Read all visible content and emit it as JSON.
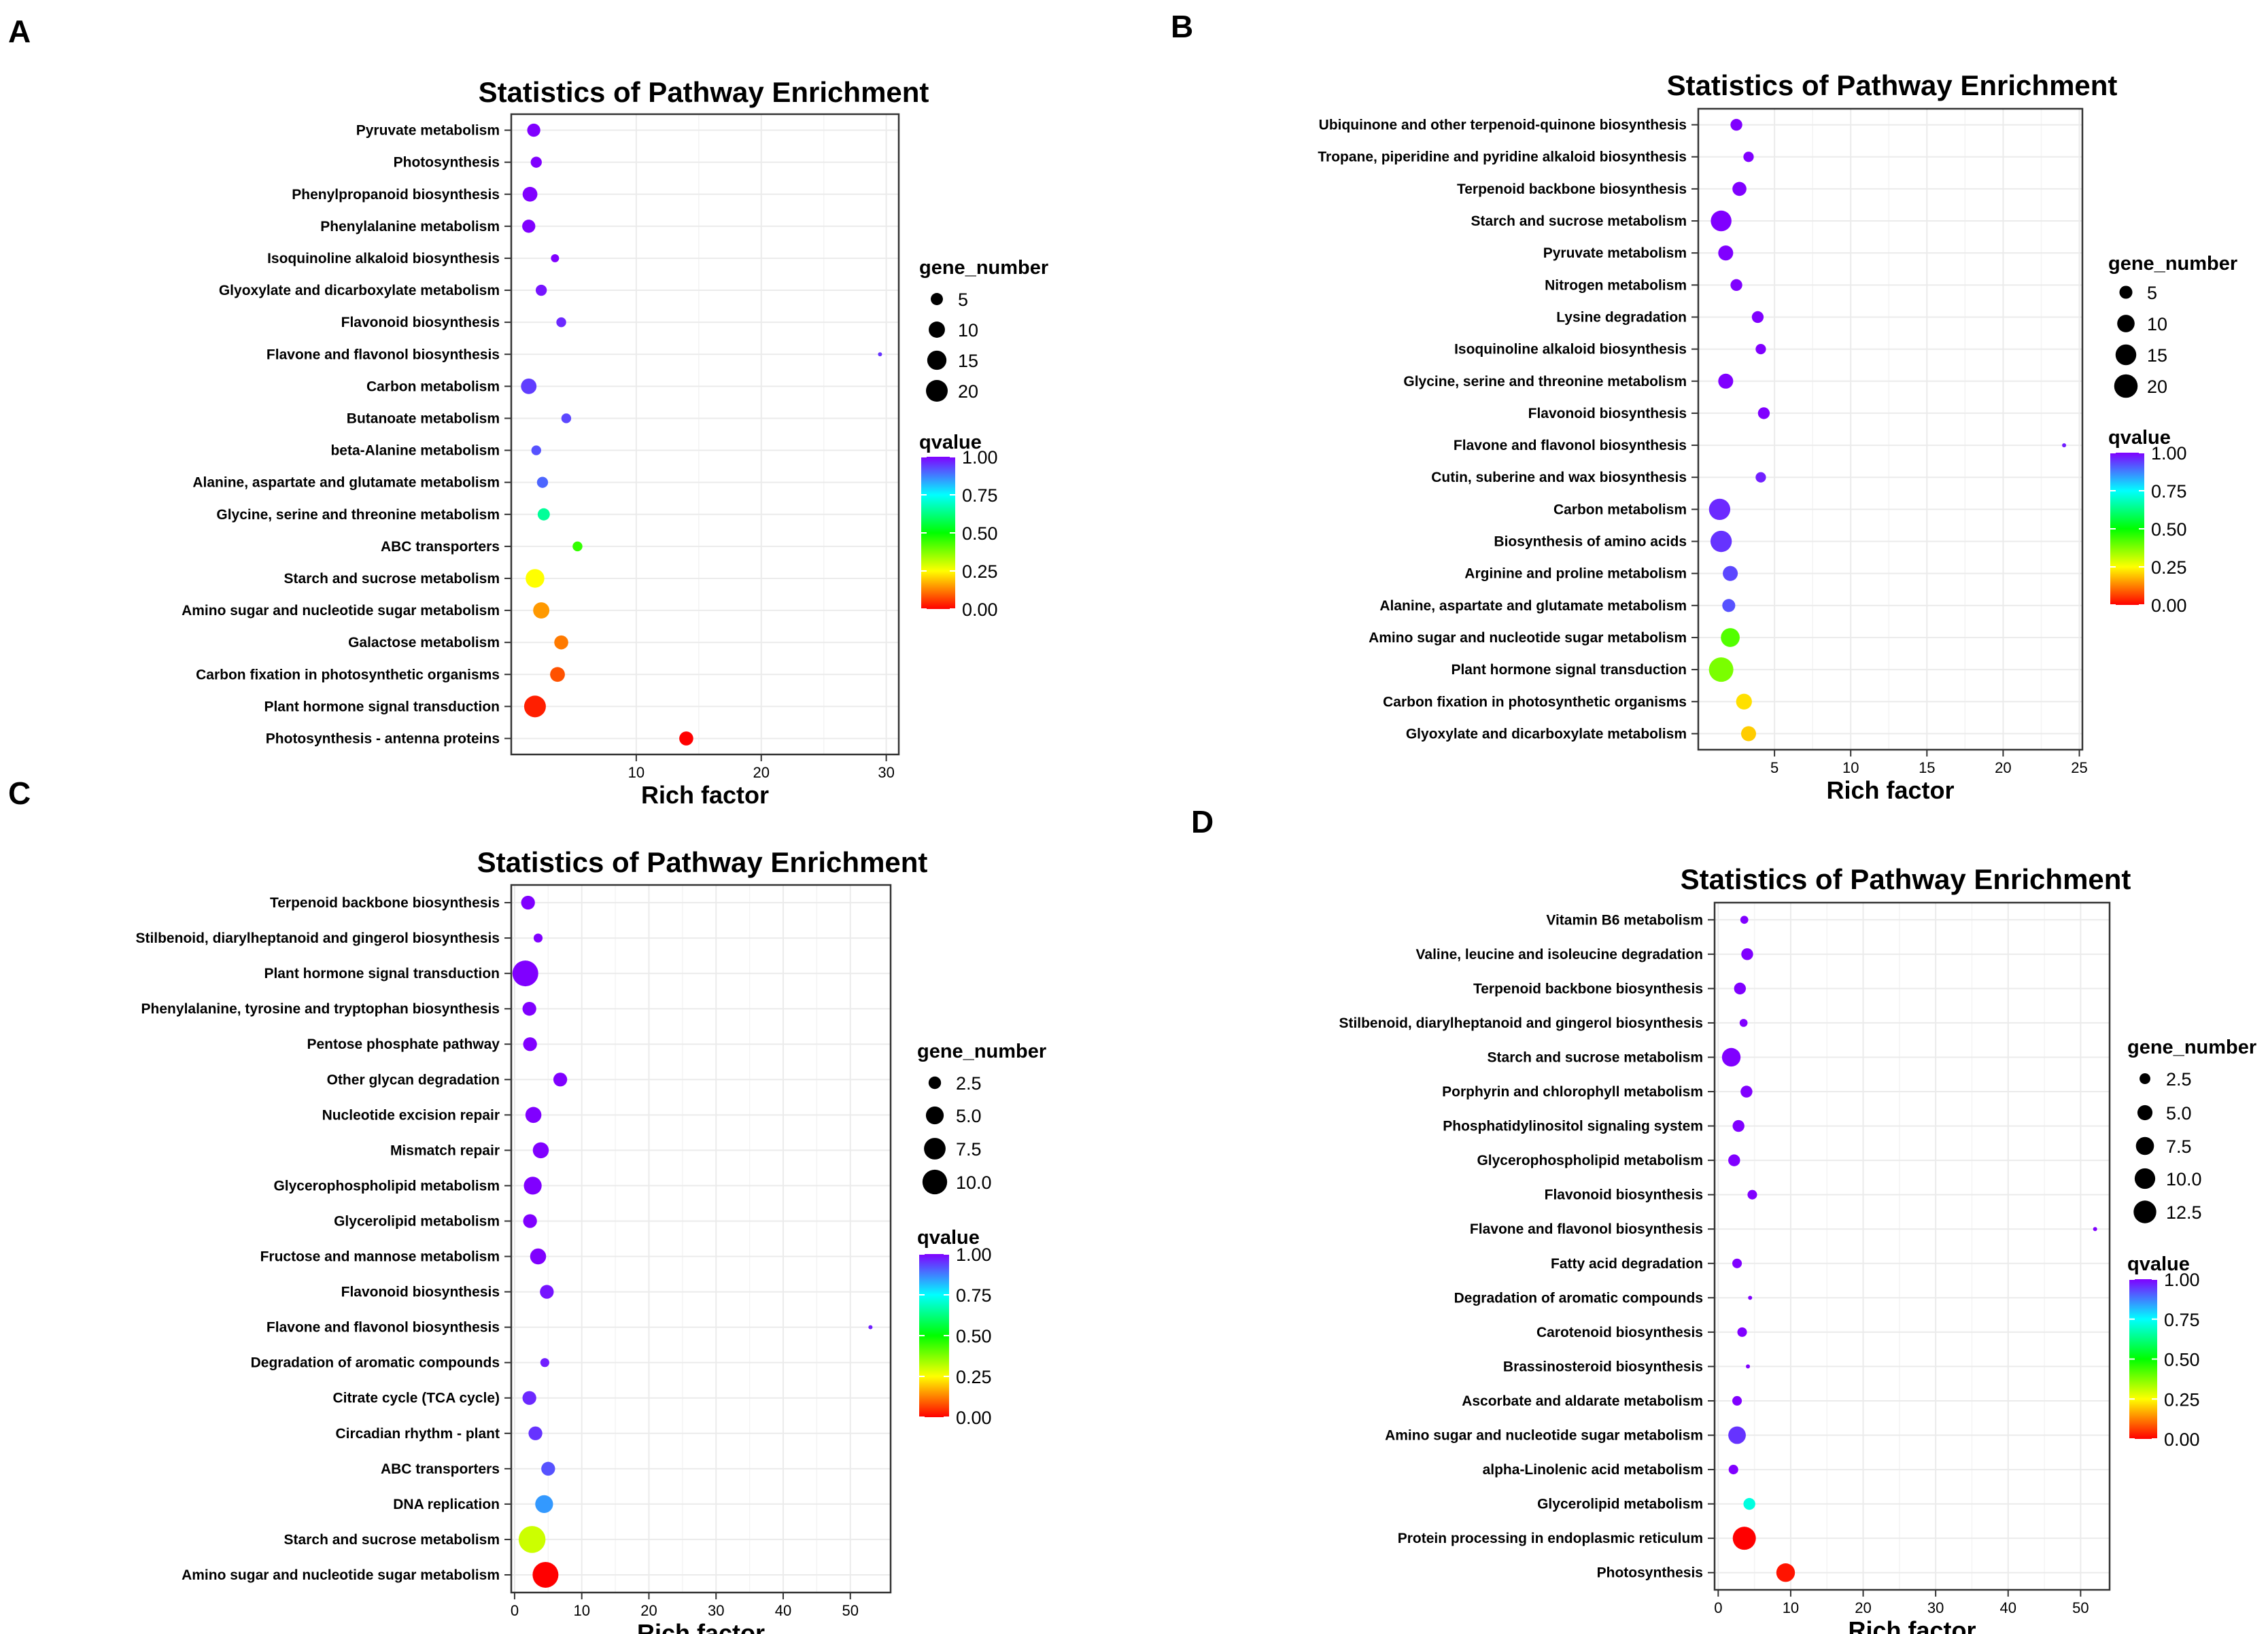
{
  "panel_labels": [
    "A",
    "B",
    "C",
    "D"
  ],
  "colors": {
    "q0": "#ff0000",
    "q25": "#ffff00",
    "q50": "#00ff00",
    "q75": "#00ffff",
    "q100": "#8000ff",
    "grid": "#ebebeb",
    "panel": "#ffffff",
    "border": "#333333"
  },
  "chart_data": [
    {
      "panel": "A",
      "type": "scatter",
      "title": "Statistics of Pathway Enrichment",
      "xlabel": "Rich factor",
      "ylabel": "",
      "xlim": [
        0,
        31
      ],
      "xticks": [
        10,
        20,
        30
      ],
      "size_legend_title": "gene_number",
      "size_legend": [
        5,
        10,
        15,
        20
      ],
      "color_legend_title": "qvalue",
      "color_legend": [
        "1.00",
        "0.75",
        "0.50",
        "0.25",
        "0.00"
      ],
      "points": [
        {
          "pathway": "Pyruvate metabolism",
          "rich_factor": 1.8,
          "gene_number": 6,
          "qvalue": 1.0
        },
        {
          "pathway": "Photosynthesis",
          "rich_factor": 2.0,
          "gene_number": 4,
          "qvalue": 1.0
        },
        {
          "pathway": "Phenylpropanoid biosynthesis",
          "rich_factor": 1.5,
          "gene_number": 8,
          "qvalue": 1.0
        },
        {
          "pathway": "Phenylalanine metabolism",
          "rich_factor": 1.4,
          "gene_number": 6,
          "qvalue": 1.0
        },
        {
          "pathway": "Isoquinoline alkaloid biosynthesis",
          "rich_factor": 3.5,
          "gene_number": 2,
          "qvalue": 1.0
        },
        {
          "pathway": "Glyoxylate and dicarboxylate metabolism",
          "rich_factor": 2.4,
          "gene_number": 4,
          "qvalue": 0.98
        },
        {
          "pathway": "Flavonoid biosynthesis",
          "rich_factor": 4.0,
          "gene_number": 3,
          "qvalue": 0.96
        },
        {
          "pathway": "Flavone and flavonol biosynthesis",
          "rich_factor": 29.5,
          "gene_number": 1,
          "qvalue": 0.95
        },
        {
          "pathway": "Carbon metabolism",
          "rich_factor": 1.4,
          "gene_number": 9,
          "qvalue": 0.94
        },
        {
          "pathway": "Butanoate metabolism",
          "rich_factor": 4.4,
          "gene_number": 3,
          "qvalue": 0.93
        },
        {
          "pathway": "beta-Alanine metabolism",
          "rich_factor": 2.0,
          "gene_number": 3,
          "qvalue": 0.92
        },
        {
          "pathway": "Alanine, aspartate and glutamate metabolism",
          "rich_factor": 2.5,
          "gene_number": 4,
          "qvalue": 0.9
        },
        {
          "pathway": "Glycine, serine and threonine metabolism",
          "rich_factor": 2.6,
          "gene_number": 5,
          "qvalue": 0.65
        },
        {
          "pathway": "ABC transporters",
          "rich_factor": 5.3,
          "gene_number": 3,
          "qvalue": 0.45
        },
        {
          "pathway": "Starch and sucrose metabolism",
          "rich_factor": 1.9,
          "gene_number": 14,
          "qvalue": 0.25
        },
        {
          "pathway": "Amino sugar and nucleotide sugar metabolism",
          "rich_factor": 2.4,
          "gene_number": 10,
          "qvalue": 0.15
        },
        {
          "pathway": "Galactose metabolism",
          "rich_factor": 4.0,
          "gene_number": 7,
          "qvalue": 0.12
        },
        {
          "pathway": "Carbon fixation in photosynthetic organisms",
          "rich_factor": 3.7,
          "gene_number": 8,
          "qvalue": 0.08
        },
        {
          "pathway": "Plant hormone signal transduction",
          "rich_factor": 1.9,
          "gene_number": 20,
          "qvalue": 0.03
        },
        {
          "pathway": "Photosynthesis - antenna proteins",
          "rich_factor": 14.0,
          "gene_number": 7,
          "qvalue": 0.0
        }
      ]
    },
    {
      "panel": "B",
      "type": "scatter",
      "title": "Statistics of Pathway Enrichment",
      "xlabel": "Rich factor",
      "ylabel": "",
      "xlim": [
        0,
        25.2
      ],
      "xticks": [
        5,
        10,
        15,
        20,
        25
      ],
      "size_legend_title": "gene_number",
      "size_legend": [
        5,
        10,
        15,
        20
      ],
      "color_legend_title": "qvalue",
      "color_legend": [
        "1.00",
        "0.75",
        "0.50",
        "0.25",
        "0.00"
      ],
      "points": [
        {
          "pathway": "Ubiquinone and other terpenoid-quinone biosynthesis",
          "rich_factor": 2.5,
          "gene_number": 4,
          "qvalue": 1.0
        },
        {
          "pathway": "Tropane, piperidine and pyridine alkaloid biosynthesis",
          "rich_factor": 3.3,
          "gene_number": 3,
          "qvalue": 1.0
        },
        {
          "pathway": "Terpenoid backbone biosynthesis",
          "rich_factor": 2.7,
          "gene_number": 6,
          "qvalue": 1.0
        },
        {
          "pathway": "Starch and sucrose metabolism",
          "rich_factor": 1.5,
          "gene_number": 15,
          "qvalue": 1.0
        },
        {
          "pathway": "Pyruvate metabolism",
          "rich_factor": 1.8,
          "gene_number": 7,
          "qvalue": 1.0
        },
        {
          "pathway": "Nitrogen metabolism",
          "rich_factor": 2.5,
          "gene_number": 4,
          "qvalue": 1.0
        },
        {
          "pathway": "Lysine degradation",
          "rich_factor": 3.9,
          "gene_number": 4,
          "qvalue": 1.0
        },
        {
          "pathway": "Isoquinoline alkaloid biosynthesis",
          "rich_factor": 4.1,
          "gene_number": 3,
          "qvalue": 1.0
        },
        {
          "pathway": "Glycine, serine and threonine metabolism",
          "rich_factor": 1.8,
          "gene_number": 7,
          "qvalue": 1.0
        },
        {
          "pathway": "Flavonoid biosynthesis",
          "rich_factor": 4.3,
          "gene_number": 4,
          "qvalue": 1.0
        },
        {
          "pathway": "Flavone and flavonol biosynthesis",
          "rich_factor": 24.0,
          "gene_number": 1,
          "qvalue": 0.97
        },
        {
          "pathway": "Cutin, suberine and wax biosynthesis",
          "rich_factor": 4.1,
          "gene_number": 3,
          "qvalue": 0.97
        },
        {
          "pathway": "Carbon metabolism",
          "rich_factor": 1.4,
          "gene_number": 16,
          "qvalue": 0.96
        },
        {
          "pathway": "Biosynthesis of amino acids",
          "rich_factor": 1.5,
          "gene_number": 16,
          "qvalue": 0.95
        },
        {
          "pathway": "Arginine and proline metabolism",
          "rich_factor": 2.1,
          "gene_number": 7,
          "qvalue": 0.93
        },
        {
          "pathway": "Alanine, aspartate and glutamate metabolism",
          "rich_factor": 2.0,
          "gene_number": 5,
          "qvalue": 0.92
        },
        {
          "pathway": "Amino sugar and nucleotide sugar metabolism",
          "rich_factor": 2.1,
          "gene_number": 12,
          "qvalue": 0.42
        },
        {
          "pathway": "Plant hormone signal transduction",
          "rich_factor": 1.5,
          "gene_number": 22,
          "qvalue": 0.38
        },
        {
          "pathway": "Carbon fixation in photosynthetic organisms",
          "rich_factor": 3.0,
          "gene_number": 8,
          "qvalue": 0.22
        },
        {
          "pathway": "Glyoxylate and dicarboxylate metabolism",
          "rich_factor": 3.3,
          "gene_number": 7,
          "qvalue": 0.2
        }
      ]
    },
    {
      "panel": "C",
      "type": "scatter",
      "title": "Statistics of Pathway Enrichment",
      "xlabel": "Rich factor",
      "ylabel": "",
      "xlim": [
        -0.5,
        56
      ],
      "xticks": [
        0,
        10,
        20,
        30,
        40,
        50
      ],
      "size_legend_title": "gene_number",
      "size_legend": [
        "2.5",
        "5.0",
        "7.5",
        "10.0"
      ],
      "color_legend_title": "qvalue",
      "color_legend": [
        "1.00",
        "0.75",
        "0.50",
        "0.25",
        "0.00"
      ],
      "points": [
        {
          "pathway": "Terpenoid backbone biosynthesis",
          "rich_factor": 2.0,
          "gene_number": 3,
          "qvalue": 1.0
        },
        {
          "pathway": "Stilbenoid, diarylheptanoid and gingerol biosynthesis",
          "rich_factor": 3.5,
          "gene_number": 1.5,
          "qvalue": 1.0
        },
        {
          "pathway": "Plant hormone signal transduction",
          "rich_factor": 1.6,
          "gene_number": 11,
          "qvalue": 1.0
        },
        {
          "pathway": "Phenylalanine, tyrosine and tryptophan biosynthesis",
          "rich_factor": 2.2,
          "gene_number": 3,
          "qvalue": 1.0
        },
        {
          "pathway": "Pentose phosphate pathway",
          "rich_factor": 2.3,
          "gene_number": 3,
          "qvalue": 1.0
        },
        {
          "pathway": "Other glycan degradation",
          "rich_factor": 6.8,
          "gene_number": 3,
          "qvalue": 1.0
        },
        {
          "pathway": "Nucleotide excision repair",
          "rich_factor": 2.8,
          "gene_number": 4,
          "qvalue": 1.0
        },
        {
          "pathway": "Mismatch repair",
          "rich_factor": 3.9,
          "gene_number": 4,
          "qvalue": 1.0
        },
        {
          "pathway": "Glycerophospholipid metabolism",
          "rich_factor": 2.7,
          "gene_number": 5,
          "qvalue": 1.0
        },
        {
          "pathway": "Glycerolipid metabolism",
          "rich_factor": 2.3,
          "gene_number": 3,
          "qvalue": 1.0
        },
        {
          "pathway": "Fructose and mannose metabolism",
          "rich_factor": 3.5,
          "gene_number": 4,
          "qvalue": 1.0
        },
        {
          "pathway": "Flavonoid biosynthesis",
          "rich_factor": 4.8,
          "gene_number": 3,
          "qvalue": 0.98
        },
        {
          "pathway": "Flavone and flavonol biosynthesis",
          "rich_factor": 53.0,
          "gene_number": 1,
          "qvalue": 0.97
        },
        {
          "pathway": "Degradation of aromatic compounds",
          "rich_factor": 4.5,
          "gene_number": 1.5,
          "qvalue": 0.97
        },
        {
          "pathway": "Citrate cycle (TCA cycle)",
          "rich_factor": 2.2,
          "gene_number": 3,
          "qvalue": 0.96
        },
        {
          "pathway": "Circadian rhythm - plant",
          "rich_factor": 3.1,
          "gene_number": 3,
          "qvalue": 0.95
        },
        {
          "pathway": "ABC transporters",
          "rich_factor": 5.0,
          "gene_number": 3,
          "qvalue": 0.92
        },
        {
          "pathway": "DNA replication",
          "rich_factor": 4.4,
          "gene_number": 5,
          "qvalue": 0.85
        },
        {
          "pathway": "Starch and sucrose metabolism",
          "rich_factor": 2.6,
          "gene_number": 12,
          "qvalue": 0.3
        },
        {
          "pathway": "Amino sugar and nucleotide sugar metabolism",
          "rich_factor": 4.6,
          "gene_number": 11,
          "qvalue": 0.0
        }
      ]
    },
    {
      "panel": "D",
      "type": "scatter",
      "title": "Statistics of Pathway Enrichment",
      "xlabel": "Rich factor",
      "ylabel": "",
      "xlim": [
        -0.5,
        54
      ],
      "xticks": [
        0,
        10,
        20,
        30,
        40,
        50
      ],
      "size_legend_title": "gene_number",
      "size_legend": [
        "2.5",
        "5.0",
        "7.5",
        "10.0",
        "12.5"
      ],
      "color_legend_title": "qvalue",
      "color_legend": [
        "1.00",
        "0.75",
        "0.50",
        "0.25",
        "0.00"
      ],
      "points": [
        {
          "pathway": "Vitamin B6 metabolism",
          "rich_factor": 3.6,
          "gene_number": 1.5,
          "qvalue": 1.0
        },
        {
          "pathway": "Valine, leucine and isoleucine degradation",
          "rich_factor": 4.0,
          "gene_number": 3,
          "qvalue": 1.0
        },
        {
          "pathway": "Terpenoid backbone biosynthesis",
          "rich_factor": 3.0,
          "gene_number": 3,
          "qvalue": 1.0
        },
        {
          "pathway": "Stilbenoid, diarylheptanoid and gingerol biosynthesis",
          "rich_factor": 3.5,
          "gene_number": 1.5,
          "qvalue": 1.0
        },
        {
          "pathway": "Starch and sucrose metabolism",
          "rich_factor": 1.8,
          "gene_number": 8,
          "qvalue": 1.0
        },
        {
          "pathway": "Porphyrin and chlorophyll metabolism",
          "rich_factor": 3.9,
          "gene_number": 3,
          "qvalue": 1.0
        },
        {
          "pathway": "Phosphatidylinositol signaling system",
          "rich_factor": 2.8,
          "gene_number": 3,
          "qvalue": 1.0
        },
        {
          "pathway": "Glycerophospholipid metabolism",
          "rich_factor": 2.2,
          "gene_number": 3,
          "qvalue": 1.0
        },
        {
          "pathway": "Flavonoid biosynthesis",
          "rich_factor": 4.7,
          "gene_number": 2,
          "qvalue": 1.0
        },
        {
          "pathway": "Flavone and flavonol biosynthesis",
          "rich_factor": 52.0,
          "gene_number": 1,
          "qvalue": 1.0
        },
        {
          "pathway": "Fatty acid degradation",
          "rich_factor": 2.6,
          "gene_number": 2,
          "qvalue": 1.0
        },
        {
          "pathway": "Degradation of aromatic compounds",
          "rich_factor": 4.4,
          "gene_number": 1,
          "qvalue": 1.0
        },
        {
          "pathway": "Carotenoid biosynthesis",
          "rich_factor": 3.3,
          "gene_number": 2,
          "qvalue": 1.0
        },
        {
          "pathway": "Brassinosteroid biosynthesis",
          "rich_factor": 4.1,
          "gene_number": 1,
          "qvalue": 1.0
        },
        {
          "pathway": "Ascorbate and aldarate metabolism",
          "rich_factor": 2.6,
          "gene_number": 2,
          "qvalue": 1.0
        },
        {
          "pathway": "Amino sugar and nucleotide sugar metabolism",
          "rich_factor": 2.6,
          "gene_number": 7,
          "qvalue": 0.95
        },
        {
          "pathway": "alpha-Linolenic acid metabolism",
          "rich_factor": 2.1,
          "gene_number": 2,
          "qvalue": 1.0
        },
        {
          "pathway": "Glycerolipid metabolism",
          "rich_factor": 4.3,
          "gene_number": 3,
          "qvalue": 0.72
        },
        {
          "pathway": "Protein processing in endoplasmic reticulum",
          "rich_factor": 3.6,
          "gene_number": 13,
          "qvalue": 0.0
        },
        {
          "pathway": "Photosynthesis",
          "rich_factor": 9.3,
          "gene_number": 8,
          "qvalue": 0.02
        }
      ]
    }
  ]
}
